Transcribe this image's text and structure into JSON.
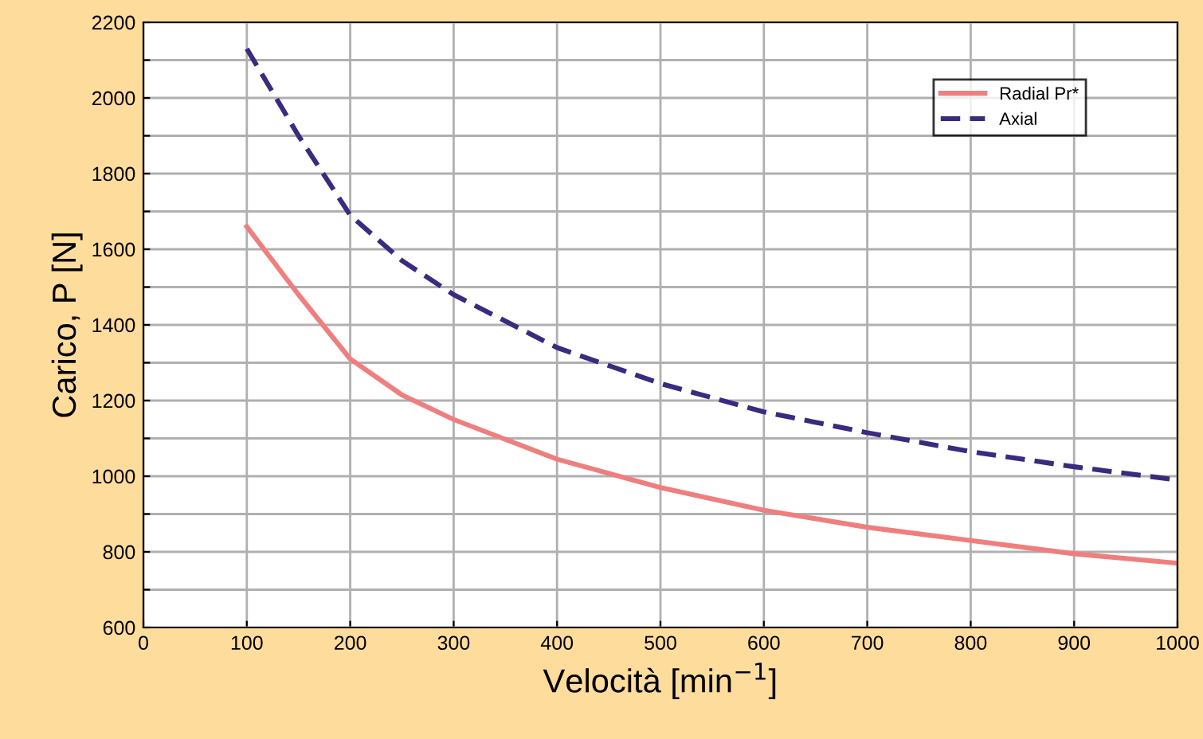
{
  "chart_data": {
    "type": "line",
    "xlabel": "Velocità [min$^{−1}$]",
    "ylabel": "Carico, P [N]",
    "xlim": [
      0,
      1000
    ],
    "xticks": [
      0,
      100,
      200,
      300,
      400,
      500,
      600,
      700,
      800,
      900,
      1000
    ],
    "ylim": [
      600,
      2200
    ],
    "yticks": [
      600,
      {
        "value": 700,
        "label": null
      },
      800,
      {
        "value": 900,
        "label": null
      },
      1000,
      {
        "value": 1100,
        "label": null
      },
      1200,
      {
        "value": 1300,
        "label": null
      },
      1400,
      {
        "value": 1500,
        "label": null
      },
      1600,
      {
        "value": 1700,
        "label": null
      },
      1800,
      {
        "value": 1900,
        "label": null
      },
      2000,
      {
        "value": 2100,
        "label": null
      },
      2200
    ],
    "grid": true,
    "legend": "top right",
    "marker": "none",
    "series": [
      {
        "name": "Radial Pr*",
        "color": "#ef7f7f",
        "line_style": "solid",
        "x": [
          100,
          150,
          200,
          250,
          300,
          400,
          500,
          600,
          700,
          800,
          900,
          1000
        ],
        "values": [
          1660,
          1480,
          1310,
          1215,
          1150,
          1045,
          970,
          910,
          865,
          830,
          795,
          770
        ]
      },
      {
        "name": "Axial",
        "color": "#3b2a80",
        "line_style": "dashed",
        "x": [
          100,
          150,
          200,
          250,
          300,
          400,
          500,
          600,
          700,
          800,
          900,
          1000
        ],
        "values": [
          2130,
          1900,
          1690,
          1570,
          1480,
          1340,
          1245,
          1170,
          1115,
          1065,
          1025,
          990
        ]
      }
    ]
  }
}
